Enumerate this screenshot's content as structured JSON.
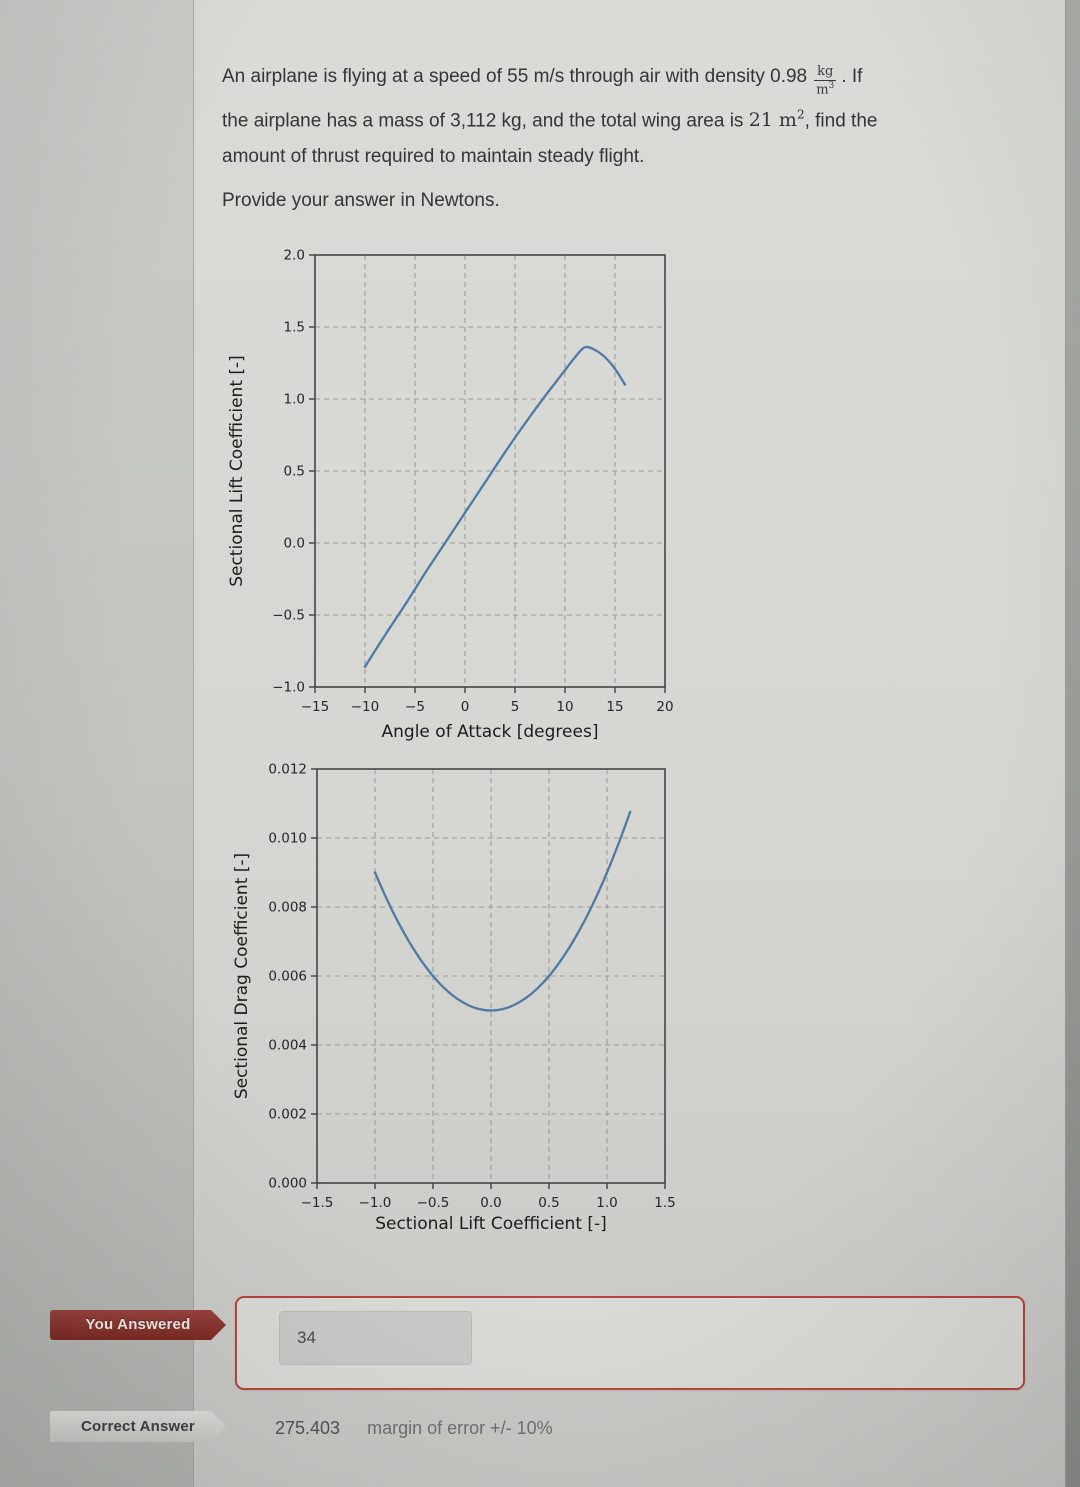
{
  "question": {
    "line1_pre": "An airplane is flying at a speed of 55 m/s through air with density 0.98",
    "density_frac": {
      "num": "kg",
      "den_base": "m",
      "den_sup": "3"
    },
    "line1_post": ". If",
    "line2_pre": "the airplane has a mass of 3,112 kg, and the total wing area is ",
    "area_math": {
      "base": "21 m",
      "sup": "2"
    },
    "line2_post": ", find the",
    "line3": "amount of thrust required to maintain steady flight.",
    "prompt": "Provide your answer in Newtons."
  },
  "chart_data": [
    {
      "type": "line",
      "title": "",
      "xlabel": "Angle of Attack [degrees]",
      "ylabel": "Sectional Lift Coefficient [-]",
      "xlim": [
        -15,
        20
      ],
      "ylim": [
        -1.0,
        2.0
      ],
      "xticks": [
        -15,
        -10,
        -5,
        0,
        5,
        10,
        15,
        20
      ],
      "xtick_labels": [
        "−15",
        "−10",
        "−5",
        "0",
        "5",
        "10",
        "15",
        "20"
      ],
      "yticks": [
        -1.0,
        -0.5,
        0.0,
        0.5,
        1.0,
        1.5,
        2.0
      ],
      "ytick_labels": [
        "−1.0",
        "−0.5",
        "0.0",
        "0.5",
        "1.0",
        "1.5",
        "2.0"
      ],
      "grid": true,
      "legend": false,
      "series": [
        {
          "name": "sectional lift coefficient vs angle of attack",
          "x": [
            -10,
            -8,
            -6,
            -4,
            -2,
            0,
            2,
            4,
            6,
            8,
            9,
            10,
            11,
            12,
            13,
            14,
            15,
            16
          ],
          "y": [
            -0.86,
            -0.64,
            -0.43,
            -0.21,
            0.0,
            0.21,
            0.42,
            0.63,
            0.83,
            1.02,
            1.11,
            1.2,
            1.29,
            1.36,
            1.34,
            1.29,
            1.21,
            1.1
          ]
        }
      ]
    },
    {
      "type": "line",
      "title": "",
      "xlabel": "Sectional Lift Coefficient [-]",
      "ylabel": "Sectional Drag Coefficient [-]",
      "xlim": [
        -1.5,
        1.5
      ],
      "ylim": [
        0.0,
        0.012
      ],
      "xticks": [
        -1.5,
        -1.0,
        -0.5,
        0.0,
        0.5,
        1.0,
        1.5
      ],
      "xtick_labels": [
        "−1.5",
        "−1.0",
        "−0.5",
        "0.0",
        "0.5",
        "1.0",
        "1.5"
      ],
      "yticks": [
        0.0,
        0.002,
        0.004,
        0.006,
        0.008,
        0.01,
        0.012
      ],
      "ytick_labels": [
        "0.000",
        "0.002",
        "0.004",
        "0.006",
        "0.008",
        "0.010",
        "0.012"
      ],
      "grid": true,
      "legend": false,
      "series": [
        {
          "name": "drag polar (sectional drag vs lift coefficient)",
          "x": [
            -1.0,
            -0.9,
            -0.8,
            -0.7,
            -0.6,
            -0.5,
            -0.4,
            -0.3,
            -0.2,
            -0.1,
            0.0,
            0.1,
            0.2,
            0.3,
            0.4,
            0.5,
            0.6,
            0.7,
            0.8,
            0.9,
            1.0,
            1.1,
            1.2
          ],
          "y": [
            0.009,
            0.00824,
            0.00756,
            0.00696,
            0.00644,
            0.006,
            0.00564,
            0.00536,
            0.00516,
            0.00504,
            0.005,
            0.00504,
            0.00516,
            0.00536,
            0.00564,
            0.006,
            0.00644,
            0.00696,
            0.00756,
            0.00824,
            0.009,
            0.00984,
            0.01076
          ]
        }
      ]
    }
  ],
  "answer_section": {
    "you_answered_label": "You Answered",
    "user_answer": "34",
    "correct_answer_label": "Correct Answer",
    "correct_answer_value": "275.403",
    "margin_of_error": "margin of error +/- 10%"
  },
  "colors": {
    "curve": "#4d7aa5",
    "badge_red": "#8c3531",
    "badge_gray": "#d6d6d3",
    "answer_box_border": "#b64440"
  }
}
